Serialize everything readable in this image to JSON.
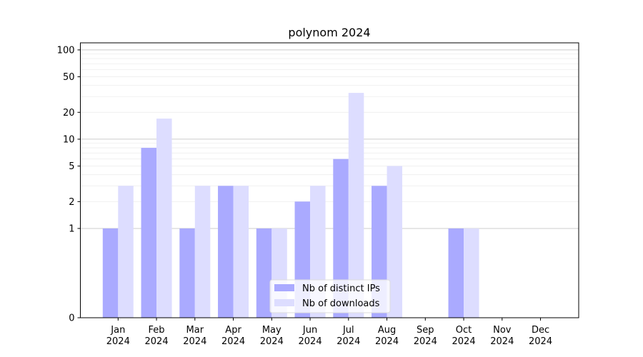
{
  "chart_data": {
    "type": "bar",
    "title": "polynom 2024",
    "xlabel": "",
    "ylabel": "",
    "y_scale": "symlog",
    "ylim": [
      0,
      120
    ],
    "grid": "horizontal major and minor",
    "legend_position": "lower-center",
    "categories": [
      {
        "month": "Jan",
        "year": "2024"
      },
      {
        "month": "Feb",
        "year": "2024"
      },
      {
        "month": "Mar",
        "year": "2024"
      },
      {
        "month": "Apr",
        "year": "2024"
      },
      {
        "month": "May",
        "year": "2024"
      },
      {
        "month": "Jun",
        "year": "2024"
      },
      {
        "month": "Jul",
        "year": "2024"
      },
      {
        "month": "Aug",
        "year": "2024"
      },
      {
        "month": "Sep",
        "year": "2024"
      },
      {
        "month": "Oct",
        "year": "2024"
      },
      {
        "month": "Nov",
        "year": "2024"
      },
      {
        "month": "Dec",
        "year": "2024"
      }
    ],
    "y_ticks": [
      0,
      1,
      2,
      5,
      10,
      20,
      50,
      100
    ],
    "series": [
      {
        "name": "Nb of distinct IPs",
        "color": "#aaaaff",
        "values": [
          1,
          8,
          1,
          3,
          1,
          2,
          6,
          3,
          0,
          1,
          0,
          0
        ]
      },
      {
        "name": "Nb of downloads",
        "color": "#ddddff",
        "values": [
          3,
          17,
          3,
          3,
          1,
          3,
          33,
          5,
          0,
          1,
          0,
          0
        ]
      }
    ]
  }
}
